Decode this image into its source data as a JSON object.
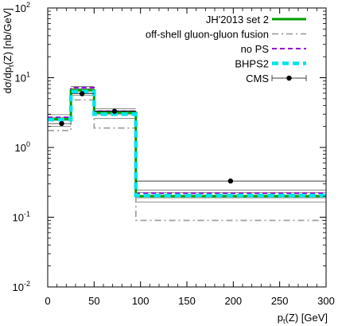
{
  "chart_data": {
    "type": "histogram",
    "xlabel": "p",
    "xlabel_sub": "t",
    "xlabel_suffix": "(Z) [GeV]",
    "ylabel": "dσ/dp",
    "ylabel_sub": "t",
    "ylabel_suffix": "(Z) [nb/GeV]",
    "xlim": [
      0,
      300
    ],
    "ylim": [
      0.01,
      100
    ],
    "yscale": "log",
    "grid": false,
    "legend_position": "top-right",
    "x_ticks": [
      "0",
      "50",
      "100",
      "150",
      "200",
      "250",
      "300"
    ],
    "y_ticks": [
      {
        "base": "10",
        "exp": "-2"
      },
      {
        "base": "10",
        "exp": "-1"
      },
      {
        "base": "10",
        "exp": "0"
      },
      {
        "base": "10",
        "exp": "1"
      },
      {
        "base": "10",
        "exp": "2"
      }
    ],
    "bin_edges": [
      0,
      25,
      50,
      95,
      300
    ],
    "series": [
      {
        "name": "off-shell gluon-gluon fusion",
        "color": "#a0a0a0",
        "dash": "dashdot",
        "values": [
          1.75,
          4.8,
          1.9,
          0.09
        ]
      },
      {
        "name": "no PS",
        "color": "#9400d3",
        "dash": "dashed",
        "values": [
          2.7,
          7.2,
          3.3,
          0.22
        ]
      },
      {
        "name": "JH'2013 set 2",
        "color": "#009e00",
        "dash": "solid",
        "values": [
          2.55,
          6.6,
          3.15,
          0.2
        ]
      },
      {
        "name": "BHPS2",
        "color": "#00e5ee",
        "dash": "dashed-thick",
        "values": [
          2.5,
          6.3,
          3.0,
          0.205
        ]
      }
    ],
    "uncertainty_bands": [
      {
        "low": [
          2.45,
          6.1,
          2.95,
          0.19
        ],
        "high": [
          2.7,
          7.0,
          3.35,
          0.225
        ]
      },
      {
        "low": [
          2.0,
          5.6,
          2.6,
          0.165
        ],
        "high": [
          2.95,
          7.5,
          3.6,
          0.245
        ]
      }
    ],
    "cms": {
      "name": "CMS",
      "color": "#000000",
      "points": [
        {
          "x": 15,
          "y": 2.2,
          "xerr": [
            0,
            25
          ]
        },
        {
          "x": 37,
          "y": 5.9,
          "xerr": [
            25,
            50
          ]
        },
        {
          "x": 72,
          "y": 3.3,
          "xerr": [
            50,
            95
          ]
        },
        {
          "x": 197,
          "y": 0.33,
          "xerr": [
            95,
            300
          ]
        }
      ]
    },
    "legend": [
      {
        "label": "JH'2013 set 2",
        "color": "#009e00",
        "style": "solid"
      },
      {
        "label": "off-shell gluon-gluon fusion",
        "color": "#a0a0a0",
        "style": "dashdot"
      },
      {
        "label": "no PS",
        "color": "#9400d3",
        "style": "dashed"
      },
      {
        "label": "BHPS2",
        "color": "#00e5ee",
        "style": "dashed-thick"
      },
      {
        "label": "CMS",
        "color": "#000000",
        "style": "errorbar"
      }
    ]
  }
}
